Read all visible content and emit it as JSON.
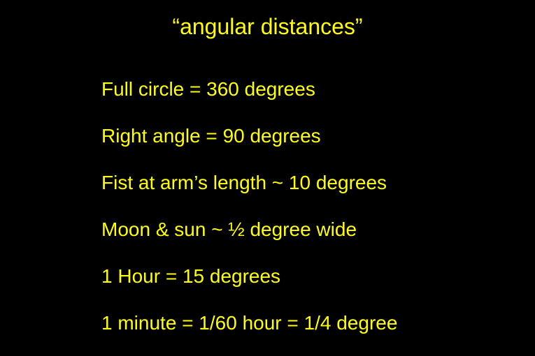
{
  "slide": {
    "title": "“angular distances”",
    "lines": [
      "Full circle = 360 degrees",
      "Right angle = 90 degrees",
      "Fist at arm’s length ~ 10 degrees",
      "Moon & sun ~  ½ degree wide",
      "1 Hour = 15 degrees",
      "1 minute = 1/60 hour = 1/4 degree"
    ],
    "colors": {
      "background": "#000000",
      "text": "#ffff00"
    },
    "typography": {
      "title_fontsize": 32,
      "body_fontsize": 28,
      "font_family": "Arial"
    }
  }
}
